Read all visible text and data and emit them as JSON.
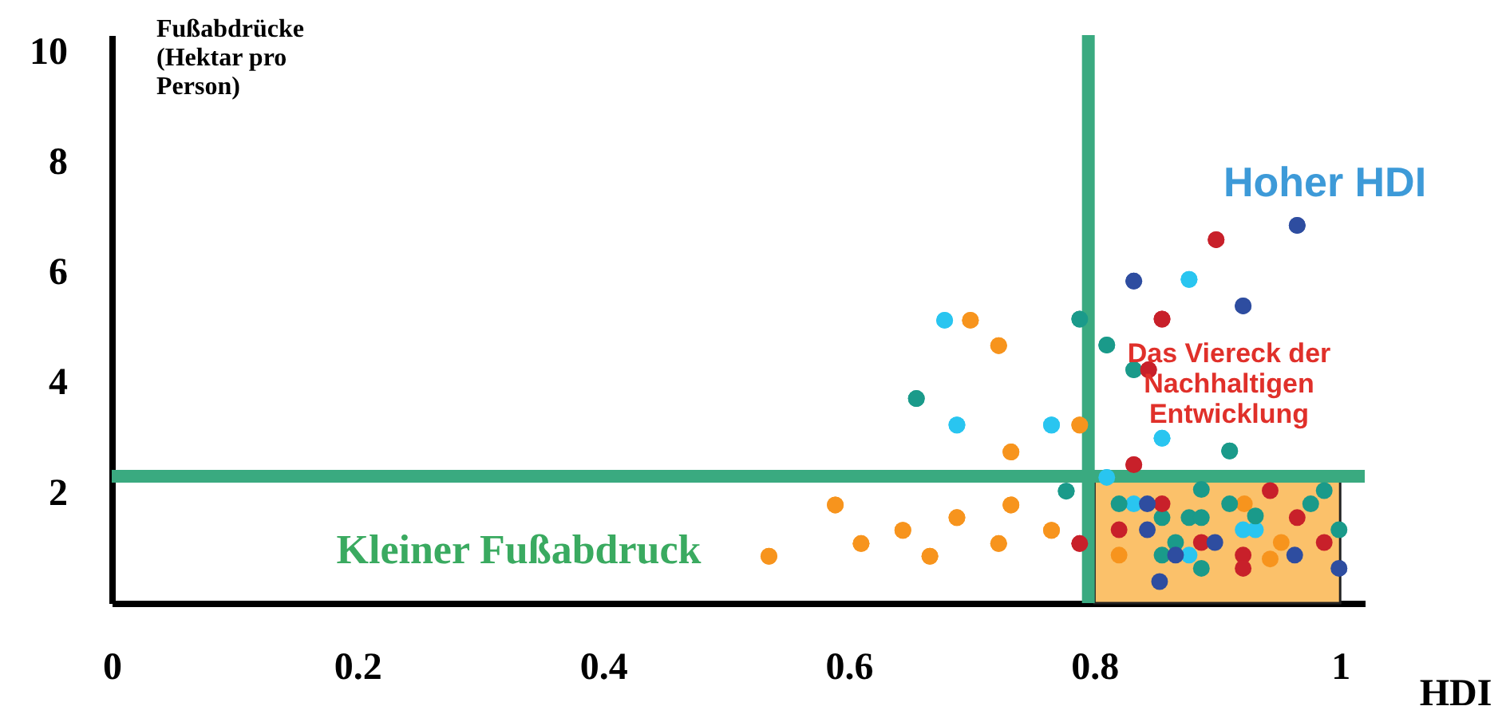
{
  "chart_data": {
    "type": "scatter",
    "xlabel": "HDI",
    "ylabel": "Fußabdrücke (Hektar pro Person)",
    "xlim": [
      0,
      1.02
    ],
    "ylim": [
      0,
      10.3
    ],
    "xticks": [
      0,
      0.2,
      0.4,
      0.6,
      0.8,
      1
    ],
    "yticks": [
      2,
      4,
      6,
      8,
      10
    ],
    "grid": false,
    "legend": false,
    "marker": "circle",
    "series": [
      {
        "color": "#f7941d",
        "x": [
          0.699,
          0.722,
          0.788,
          0.732,
          0.589,
          0.732,
          0.688,
          0.765,
          0.61,
          0.644,
          0.722,
          0.666,
          0.535,
          0.922,
          0.952,
          0.82,
          0.943
        ],
        "values": [
          5.13,
          4.67,
          3.23,
          2.74,
          1.78,
          1.78,
          1.55,
          1.32,
          1.08,
          1.32,
          1.08,
          0.85,
          0.85,
          1.8,
          1.1,
          0.87,
          0.8
        ]
      },
      {
        "color": "#29c5f0",
        "x": [
          0.678,
          0.688,
          0.765,
          0.81,
          0.877,
          0.855,
          0.832,
          0.921,
          0.931,
          0.877
        ],
        "values": [
          5.13,
          3.23,
          3.23,
          2.28,
          5.87,
          2.99,
          1.8,
          1.33,
          1.33,
          0.87
        ]
      },
      {
        "color": "#1a9a8a",
        "x": [
          0.788,
          0.81,
          0.655,
          0.777,
          0.832,
          0.91,
          0.887,
          0.987,
          0.82,
          0.91,
          0.976,
          0.855,
          0.877,
          0.887,
          0.931,
          0.999,
          0.866,
          0.855,
          0.887
        ],
        "values": [
          5.15,
          4.68,
          3.71,
          2.03,
          4.23,
          2.76,
          2.06,
          2.04,
          1.8,
          1.8,
          1.8,
          1.55,
          1.55,
          1.55,
          1.58,
          1.33,
          1.1,
          0.87,
          0.63
        ]
      },
      {
        "color": "#c8202a",
        "x": [
          0.788,
          0.899,
          0.855,
          0.844,
          0.832,
          0.943,
          0.855,
          0.965,
          0.82,
          0.887,
          0.987,
          0.921,
          0.921
        ],
        "values": [
          1.08,
          6.59,
          5.15,
          4.23,
          2.51,
          2.04,
          1.8,
          1.55,
          1.33,
          1.1,
          1.1,
          0.87,
          0.63
        ]
      },
      {
        "color": "#2e4da0",
        "x": [
          0.965,
          0.832,
          0.921,
          0.843,
          0.843,
          0.898,
          0.866,
          0.963,
          0.999,
          0.853
        ],
        "values": [
          6.85,
          5.84,
          5.39,
          1.8,
          1.33,
          1.1,
          0.87,
          0.87,
          0.63,
          0.39
        ]
      }
    ],
    "ref_lines": [
      {
        "axis": "x",
        "value": 0.795,
        "color": "#3aaa80"
      },
      {
        "axis": "y",
        "value": 2.3,
        "color": "#3aaa80"
      }
    ],
    "bands": [
      {
        "axis": "x",
        "from": 0.8,
        "to": 1.0,
        "color": "#fbc16a"
      }
    ],
    "annotations": [
      "Hoher HDI",
      "Das Viereck der Nachhaltigen Entwicklung",
      "Kleiner Fußabdruck"
    ]
  }
}
